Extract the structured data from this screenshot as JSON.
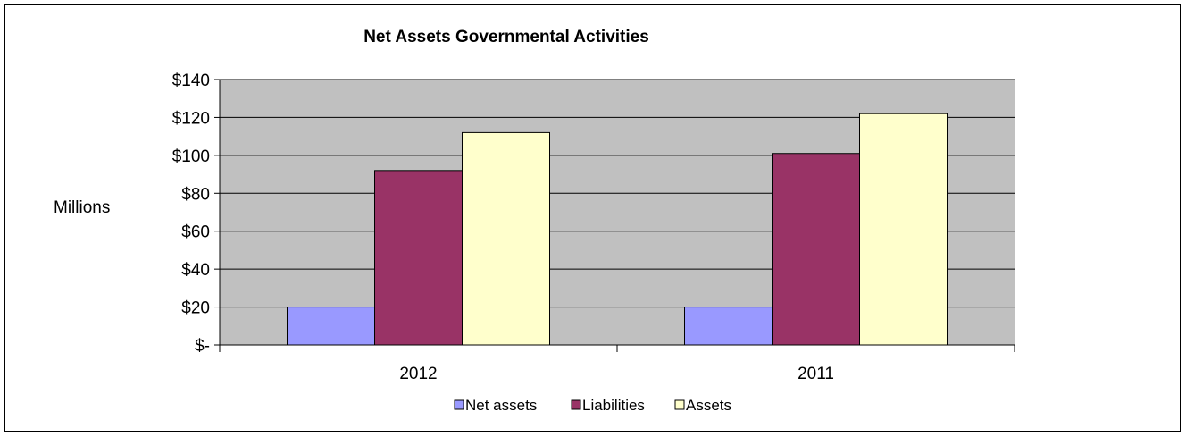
{
  "chart_data": {
    "type": "bar",
    "title": "Net Assets  Governmental  Activities",
    "ylabel": "Millions",
    "xlabel": "",
    "categories": [
      "2012",
      "2011"
    ],
    "ylim": [
      0,
      140
    ],
    "yticks": [
      0,
      20,
      40,
      60,
      80,
      100,
      120,
      140
    ],
    "ytick_labels": [
      "$-",
      "$20",
      "$40",
      "$60",
      "$80",
      "$100",
      "$120",
      "$140"
    ],
    "series": [
      {
        "name": "Net assets",
        "values": [
          20,
          20
        ],
        "color": "#9999ff"
      },
      {
        "name": "Liabilities",
        "values": [
          92,
          101
        ],
        "color": "#993366"
      },
      {
        "name": "Assets",
        "values": [
          112,
          122
        ],
        "color": "#ffffcc"
      }
    ],
    "grid": true,
    "plot_background": "#c0c0c0",
    "legend_position": "bottom"
  }
}
